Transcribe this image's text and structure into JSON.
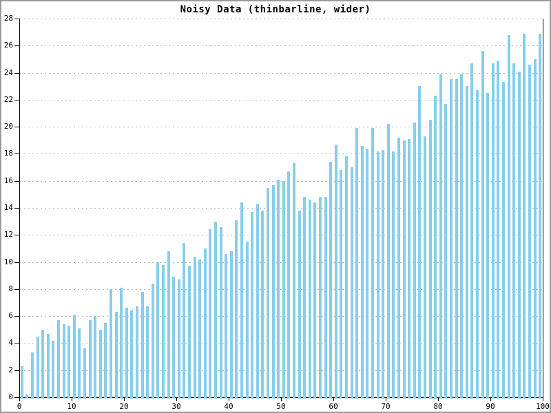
{
  "window": {
    "background": "#ffffff",
    "border_color": "#9a9a9a"
  },
  "title": "Noisy Data (thinbarline, wider)",
  "chart_data": {
    "type": "bar",
    "title": "Noisy Data (thinbarline, wider)",
    "xlabel": "",
    "ylabel": "",
    "xlim": [
      0,
      100
    ],
    "ylim": [
      0,
      28
    ],
    "x_ticks": [
      0,
      10,
      20,
      30,
      40,
      50,
      60,
      70,
      80,
      90,
      100
    ],
    "y_ticks": [
      0,
      2,
      4,
      6,
      8,
      10,
      12,
      14,
      16,
      18,
      20,
      22,
      24,
      26,
      28
    ],
    "grid": "horizontal-dashed",
    "legend": "none",
    "bar_color": "#87CEEB",
    "axis_color": "#000000",
    "gridline_color": "#b3b3b3",
    "x_first": 0.5,
    "x_step": 1,
    "values": [
      2.3,
      0.2,
      3.3,
      4.5,
      5.0,
      4.7,
      4.2,
      5.7,
      5.4,
      5.3,
      6.1,
      5.1,
      3.6,
      5.7,
      6.0,
      5.0,
      5.5,
      8.0,
      6.3,
      8.1,
      6.6,
      6.4,
      6.7,
      7.8,
      6.7,
      8.4,
      10.0,
      9.8,
      10.8,
      8.9,
      8.7,
      11.4,
      9.7,
      10.4,
      10.2,
      11.0,
      12.4,
      13.0,
      12.6,
      10.6,
      10.8,
      13.1,
      14.4,
      11.5,
      13.7,
      14.3,
      13.8,
      15.5,
      15.7,
      16.1,
      16.0,
      16.7,
      17.3,
      13.8,
      14.8,
      14.6,
      14.4,
      14.8,
      14.8,
      17.4,
      18.7,
      16.8,
      17.8,
      17.0,
      19.9,
      18.6,
      18.4,
      19.9,
      18.2,
      18.3,
      20.2,
      18.2,
      19.2,
      19.0,
      19.1,
      20.3,
      23.0,
      19.3,
      20.5,
      22.3,
      23.9,
      21.7,
      23.5,
      23.5,
      23.9,
      23.0,
      24.7,
      22.7,
      25.6,
      22.5,
      24.7,
      24.9,
      23.3,
      26.8,
      24.7,
      24.1,
      26.9,
      24.6,
      25.0,
      26.9
    ]
  }
}
